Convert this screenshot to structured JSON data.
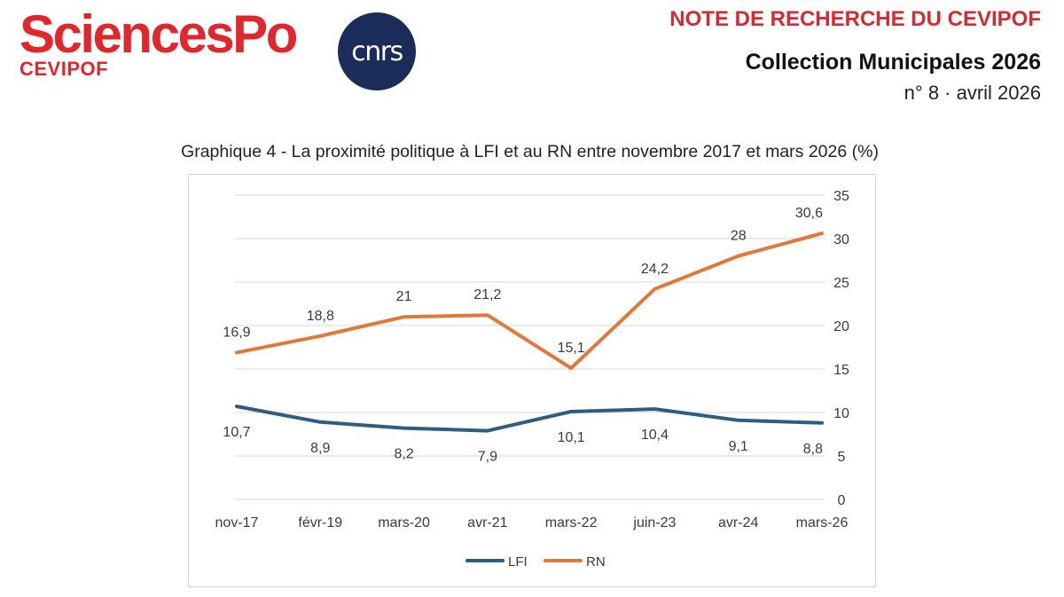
{
  "header": {
    "logo_text": "SciencesPo",
    "logo_subtext": "CEVIPOF",
    "partner_logo_text": "cnrs",
    "kicker": "NOTE DE RECHERCHE DU CEVIPOF",
    "collection": "Collection Municipales 2026",
    "issue": "n° 8 · avril 2026"
  },
  "colors": {
    "brand_red": "#e1262d",
    "cnrs_navy": "#1b2b5a",
    "lfi": "#2e5d7f",
    "rn": "#e2773a"
  },
  "chart_data": {
    "type": "line",
    "title": "Graphique 4 - La proximité politique à LFI et au RN entre novembre 2017 et mars 2026 (%)",
    "categories": [
      "nov-17",
      "févr-19",
      "mars-20",
      "avr-21",
      "mars-22",
      "juin-23",
      "avr-24",
      "mars-26"
    ],
    "series": [
      {
        "name": "LFI",
        "values": [
          10.7,
          8.9,
          8.2,
          7.9,
          10.1,
          10.4,
          9.1,
          8.8
        ],
        "labels": [
          "10,7",
          "8,9",
          "8,2",
          "7,9",
          "10,1",
          "10,4",
          "9,1",
          "8,8"
        ],
        "label_position": "below"
      },
      {
        "name": "RN",
        "values": [
          16.9,
          18.8,
          21,
          21.2,
          15.1,
          24.2,
          28,
          30.6
        ],
        "labels": [
          "16,9",
          "18,8",
          "21",
          "21,2",
          "15,1",
          "24,2",
          "28",
          "30,6"
        ],
        "label_position": "above"
      }
    ],
    "ylim": [
      0,
      35
    ],
    "yticks": [
      0,
      5,
      10,
      15,
      20,
      25,
      30,
      35
    ],
    "y_axis_side": "right",
    "grid": true,
    "legend": "bottom-center",
    "xlabel": "",
    "ylabel": ""
  }
}
